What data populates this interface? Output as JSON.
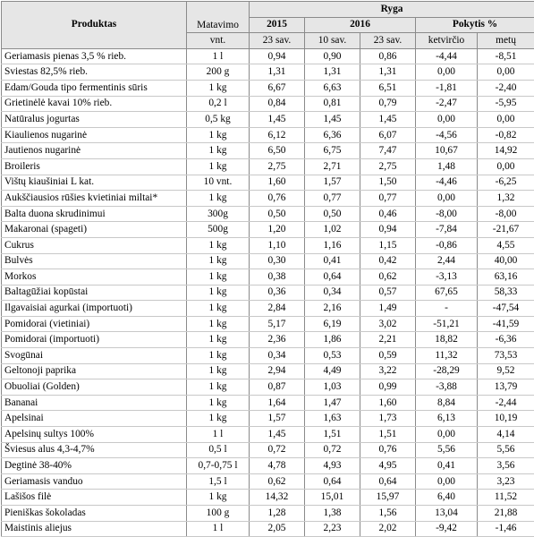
{
  "table": {
    "col_product": "Produktas",
    "col_unit_top": "Matavimo",
    "col_unit_bottom": "vnt.",
    "city": "Ryga",
    "year_2015": "2015",
    "year_2016": "2016",
    "change": "Pokytis %",
    "sub_2015": "23 sav.",
    "sub_2016a": "10 sav.",
    "sub_2016b": "23 sav.",
    "sub_quarter": "ketvirčio",
    "sub_year": "metų",
    "rows": [
      [
        "Geriamasis pienas 3,5 % rieb.",
        "1 l",
        "0,94",
        "0,90",
        "0,86",
        "-4,44",
        "-8,51"
      ],
      [
        "Sviestas 82,5% rieb.",
        "200 g",
        "1,31",
        "1,31",
        "1,31",
        "0,00",
        "0,00"
      ],
      [
        "Edam/Gouda tipo fermentinis sūris",
        "1 kg",
        "6,67",
        "6,63",
        "6,51",
        "-1,81",
        "-2,40"
      ],
      [
        "Grietinėlė kavai 10% rieb.",
        "0,2 l",
        "0,84",
        "0,81",
        "0,79",
        "-2,47",
        "-5,95"
      ],
      [
        "Natūralus jogurtas",
        "0,5 kg",
        "1,45",
        "1,45",
        "1,45",
        "0,00",
        "0,00"
      ],
      [
        "Kiaulienos nugarinė",
        "1 kg",
        "6,12",
        "6,36",
        "6,07",
        "-4,56",
        "-0,82"
      ],
      [
        "Jautienos nugarinė",
        "1 kg",
        "6,50",
        "6,75",
        "7,47",
        "10,67",
        "14,92"
      ],
      [
        "Broileris",
        "1 kg",
        "2,75",
        "2,71",
        "2,75",
        "1,48",
        "0,00"
      ],
      [
        "Vištų kiaušiniai L kat.",
        "10 vnt.",
        "1,60",
        "1,57",
        "1,50",
        "-4,46",
        "-6,25"
      ],
      [
        "Aukščiausios rūšies kvietiniai miltai*",
        "1 kg",
        "0,76",
        "0,77",
        "0,77",
        "0,00",
        "1,32"
      ],
      [
        "Balta duona skrudinimui",
        "300g",
        "0,50",
        "0,50",
        "0,46",
        "-8,00",
        "-8,00"
      ],
      [
        "Makaronai (spageti)",
        "500g",
        "1,20",
        "1,02",
        "0,94",
        "-7,84",
        "-21,67"
      ],
      [
        "Cukrus",
        "1 kg",
        "1,10",
        "1,16",
        "1,15",
        "-0,86",
        "4,55"
      ],
      [
        "Bulvės",
        "1 kg",
        "0,30",
        "0,41",
        "0,42",
        "2,44",
        "40,00"
      ],
      [
        "Morkos",
        "1 kg",
        "0,38",
        "0,64",
        "0,62",
        "-3,13",
        "63,16"
      ],
      [
        "Baltagūžiai kopūstai",
        "1 kg",
        "0,36",
        "0,34",
        "0,57",
        "67,65",
        "58,33"
      ],
      [
        "Ilgavaisiai agurkai (importuoti)",
        "1 kg",
        "2,84",
        "2,16",
        "1,49",
        "-",
        "-47,54"
      ],
      [
        "Pomidorai (vietiniai)",
        "1 kg",
        "5,17",
        "6,19",
        "3,02",
        "-51,21",
        "-41,59"
      ],
      [
        "Pomidorai (importuoti)",
        "1 kg",
        "2,36",
        "1,86",
        "2,21",
        "18,82",
        "-6,36"
      ],
      [
        "Svogūnai",
        "1 kg",
        "0,34",
        "0,53",
        "0,59",
        "11,32",
        "73,53"
      ],
      [
        "Geltonoji paprika",
        "1 kg",
        "2,94",
        "4,49",
        "3,22",
        "-28,29",
        "9,52"
      ],
      [
        "Obuoliai (Golden)",
        "1 kg",
        "0,87",
        "1,03",
        "0,99",
        "-3,88",
        "13,79"
      ],
      [
        "Bananai",
        "1 kg",
        "1,64",
        "1,47",
        "1,60",
        "8,84",
        "-2,44"
      ],
      [
        "Apelsinai",
        "1 kg",
        "1,57",
        "1,63",
        "1,73",
        "6,13",
        "10,19"
      ],
      [
        "Apelsinų sultys 100%",
        "1 l",
        "1,45",
        "1,51",
        "1,51",
        "0,00",
        "4,14"
      ],
      [
        "Šviesus alus 4,3-4,7%",
        "0,5 l",
        "0,72",
        "0,72",
        "0,76",
        "5,56",
        "5,56"
      ],
      [
        "Degtinė 38-40%",
        "0,7-0,75 l",
        "4,78",
        "4,93",
        "4,95",
        "0,41",
        "3,56"
      ],
      [
        "Geriamasis vanduo",
        "1,5 l",
        "0,62",
        "0,64",
        "0,64",
        "0,00",
        "3,23"
      ],
      [
        "Lašišos filė",
        "1 kg",
        "14,32",
        "15,01",
        "15,97",
        "6,40",
        "11,52"
      ],
      [
        "Pieniškas šokoladas",
        "100 g",
        "1,28",
        "1,38",
        "1,56",
        "13,04",
        "21,88"
      ],
      [
        "Maistinis aliejus",
        "1 l",
        "2,05",
        "2,23",
        "2,02",
        "-9,42",
        "-1,46"
      ]
    ]
  }
}
